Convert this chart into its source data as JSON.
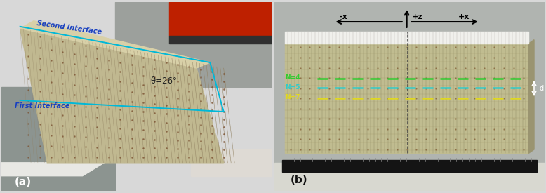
{
  "fig_width": 7.78,
  "fig_height": 2.75,
  "dpi": 100,
  "bg_color": "#d8d8d8",
  "label_a": "(a)",
  "label_b": "(b)",
  "label_fontsize": 11,
  "label_color": "#000000",
  "panel_a": {
    "bg_color_top": "#a8b0a8",
    "bg_color_bottom": "#c8c0b8",
    "body_color": "#c8c0a0",
    "body_dark": "#9a8860",
    "fin_color": "#b0a878",
    "pad_color": "#8a6840",
    "red_top": "#bb2200",
    "white_base": "#e8e8e0",
    "cyan_line": "#00b8d8",
    "text_interface": "#1840c0",
    "text_theta": "#202020",
    "second_iface_text": "Second Interface",
    "first_iface_text": "First Interface",
    "theta_text": "θ=26°"
  },
  "panel_b": {
    "bg_color": "#b8bab8",
    "body_light": "#c8c4a0",
    "body_shadow": "#a09870",
    "fin_color": "#b0a870",
    "pad_color": "#805030",
    "white_strip": "#f0f0f0",
    "black_ruler": "#151515",
    "white_base": "#e0e0d8",
    "green_line": "#30cc30",
    "cyan_line": "#30cccc",
    "yellow_line": "#e0d820",
    "white_arrow": "#f0f0f0",
    "black_arrow": "#101010",
    "N4_text": "N=4",
    "N5_text": "N=5",
    "N7_text": "N=7",
    "plus_z": "+z",
    "minus_x": "-x",
    "plus_x": "+x",
    "d_label": "d"
  }
}
